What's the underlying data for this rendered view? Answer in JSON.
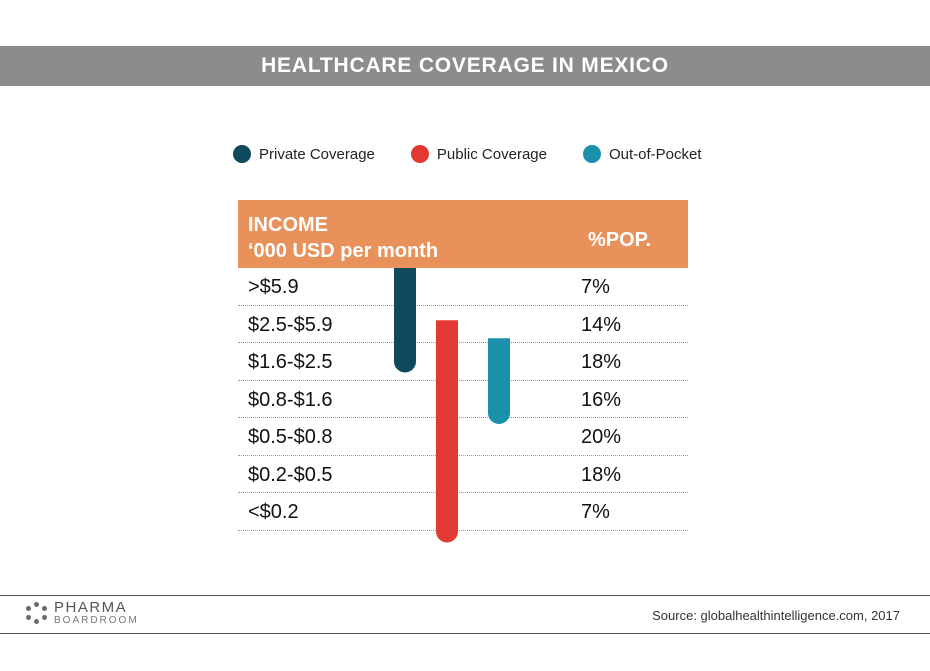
{
  "title": "HEALTHCARE COVERAGE IN MEXICO",
  "legend": [
    {
      "label": "Private Coverage",
      "color": "#0f4a5c"
    },
    {
      "label": "Public Coverage",
      "color": "#e23a32"
    },
    {
      "label": "Out-of-Pocket",
      "color": "#1a90aa"
    }
  ],
  "table": {
    "header_income_line1": "INCOME",
    "header_income_line2": "‘000 USD per month",
    "header_pop": "%POP."
  },
  "chart_data": {
    "type": "table",
    "title": "HEALTHCARE COVERAGE IN MEXICO",
    "rows": [
      {
        "income": ">$5.9",
        "pop": "7%"
      },
      {
        "income": "$2.5-$5.9",
        "pop": "14%"
      },
      {
        "income": "$1.6-$2.5",
        "pop": "18%"
      },
      {
        "income": "$0.8-$1.6",
        "pop": "16%"
      },
      {
        "income": "$0.5-$0.8",
        "pop": "20%"
      },
      {
        "income": "$0.2-$0.5",
        "pop": "18%"
      },
      {
        "income": "<$0.2",
        "pop": "7%"
      }
    ],
    "coverage_ranges": [
      {
        "series": "Private Coverage",
        "from_row": ">$5.9",
        "to_row": "$1.6-$2.5"
      },
      {
        "series": "Public Coverage",
        "from_row": "$2.5-$5.9",
        "to_row": "<$0.2"
      },
      {
        "series": "Out-of-Pocket",
        "from_row": "$2.5-$5.9",
        "to_row": "$0.8-$1.6"
      }
    ]
  },
  "footer": {
    "logo_line1": "PHARMA",
    "logo_line2": "BOARDROOM",
    "source": "Source: globalhealthintelligence.com, 2017"
  }
}
